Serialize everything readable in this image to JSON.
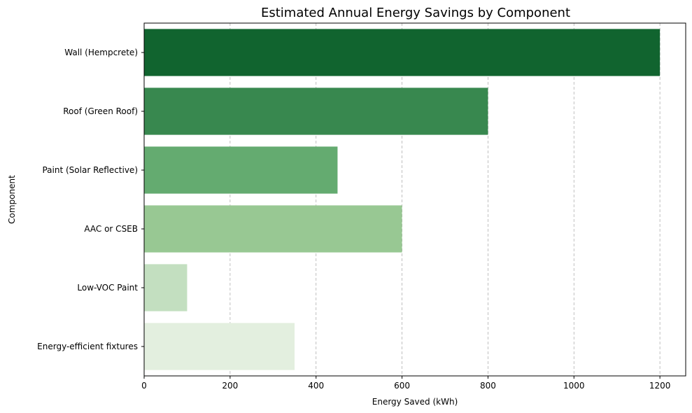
{
  "chart_data": {
    "type": "bar",
    "orientation": "horizontal",
    "title": "Estimated Annual Energy Savings by Component",
    "xlabel": "Energy Saved (kWh)",
    "ylabel": "Component",
    "categories": [
      "Wall (Hempcrete)",
      "Roof (Green Roof)",
      "Paint (Solar Reflective)",
      "AAC or CSEB",
      "Low-VOC Paint",
      "Energy-efficient fixtures"
    ],
    "values": [
      1200,
      800,
      450,
      600,
      100,
      350
    ],
    "colors": [
      "#11642f",
      "#38884f",
      "#64ab70",
      "#98c893",
      "#c3dfc0",
      "#e3efdf"
    ],
    "xlim": [
      0,
      1260
    ],
    "xticks": [
      0,
      200,
      400,
      600,
      800,
      1000,
      1200
    ],
    "grid": "vertical dashed"
  }
}
